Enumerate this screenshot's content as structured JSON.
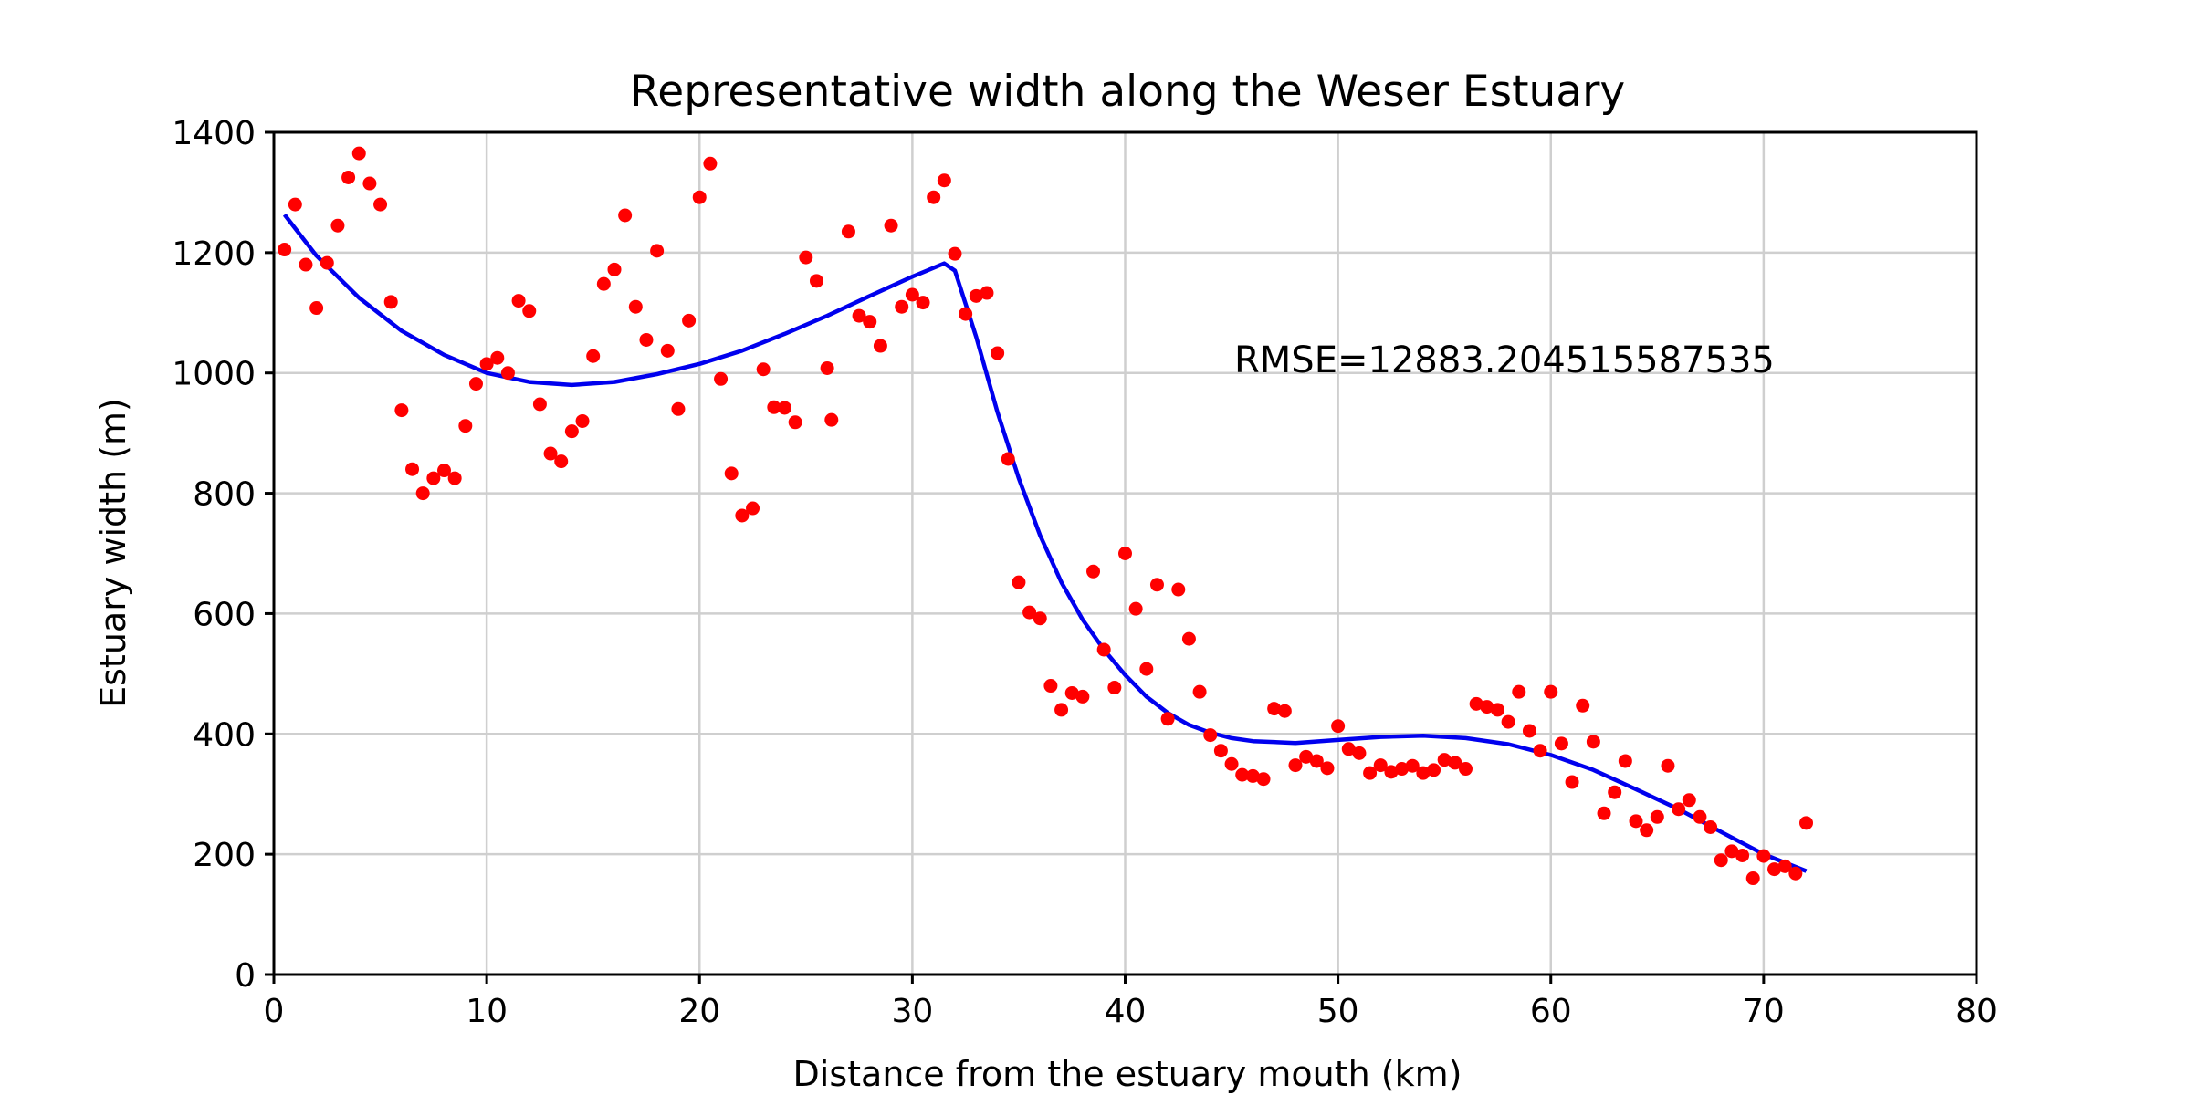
{
  "chart_data": {
    "type": "scatter",
    "title": "Representative width along the Weser Estuary",
    "xlabel": "Distance from the estuary mouth (km)",
    "ylabel": "Estuary width (m)",
    "xlim": [
      0,
      80
    ],
    "ylim": [
      0,
      1400
    ],
    "xticks": [
      0,
      10,
      20,
      30,
      40,
      50,
      60,
      70,
      80
    ],
    "yticks": [
      0,
      200,
      400,
      600,
      800,
      1000,
      1200,
      1400
    ],
    "grid": true,
    "annotation": "RMSE=12883.204515587535",
    "colors": {
      "points": "#ff0000",
      "fit": "#0000ee",
      "grid": "#cfcfcf"
    },
    "series": [
      {
        "kind": "scatter",
        "x": [
          0.5,
          1,
          1.5,
          2,
          2.5,
          3,
          3.5,
          4,
          4.5,
          5,
          5.5,
          6,
          6.5,
          7,
          7.5,
          8,
          8.5,
          9,
          9.5,
          10,
          10.5,
          11,
          11.5,
          12,
          12.5,
          13,
          13.5,
          14,
          14.5,
          15,
          15.5,
          16,
          16.5,
          17,
          17.5,
          18,
          18.5,
          19,
          19.5,
          20,
          20.5,
          21,
          21.5,
          22,
          22.5,
          23,
          23.5,
          24,
          24.5,
          25,
          25.5,
          26,
          26.2,
          27,
          27.5,
          28,
          28.5,
          29,
          29.5,
          30,
          30.5,
          31,
          31.5,
          32,
          32.5,
          33,
          33.5,
          34,
          34.5,
          35,
          35.5,
          36,
          36.5,
          37,
          37.5,
          38,
          38.5,
          39,
          39.5,
          40,
          40.5,
          41,
          41.5,
          42,
          42.5,
          43,
          43.5,
          44,
          44.5,
          45,
          45.5,
          46,
          46.5,
          47,
          47.5,
          48,
          48.5,
          49,
          49.5,
          50,
          50.5,
          51,
          51.5,
          52,
          52.5,
          53,
          53.5,
          54,
          54.5,
          55,
          55.5,
          56,
          56.5,
          57,
          57.5,
          58,
          58.5,
          59,
          59.5,
          60,
          60.5,
          61,
          61.5,
          62,
          62.5,
          63,
          63.5,
          64,
          64.5,
          65,
          65.5,
          66,
          66.5,
          67,
          67.5,
          68,
          68.5,
          69,
          69.5,
          70,
          70.5,
          71,
          71.5,
          72
        ],
        "y": [
          1205,
          1280,
          1180,
          1108,
          1183,
          1245,
          1325,
          1365,
          1315,
          1280,
          1118,
          938,
          840,
          800,
          825,
          838,
          825,
          912,
          982,
          1015,
          1025,
          1000,
          1120,
          1103,
          948,
          866,
          853,
          903,
          920,
          1028,
          1148,
          1172,
          1262,
          1110,
          1055,
          1203,
          1037,
          940,
          1087,
          1292,
          1348,
          990,
          833,
          763,
          775,
          1006,
          943,
          942,
          918,
          1192,
          1153,
          1008,
          922,
          1235,
          1095,
          1085,
          1045,
          1245,
          1110,
          1130,
          1117,
          1292,
          1320,
          1198,
          1098,
          1128,
          1133,
          1033,
          857,
          652,
          602,
          592,
          480,
          440,
          468,
          462,
          670,
          540,
          477,
          700,
          608,
          508,
          648,
          425,
          640,
          558,
          470,
          398,
          372,
          350,
          332,
          330,
          325,
          442,
          438,
          348,
          362,
          355,
          343,
          413,
          375,
          368,
          335,
          348,
          337,
          342,
          347,
          335,
          340,
          357,
          352,
          342,
          450,
          445,
          440,
          420,
          470,
          405,
          372,
          470,
          384,
          320,
          447,
          387,
          268,
          303,
          355,
          255,
          240,
          262,
          347,
          275,
          290,
          262,
          245,
          190,
          205,
          198,
          160,
          197,
          175,
          180,
          168,
          252
        ]
      },
      {
        "kind": "line",
        "x": [
          0.5,
          2,
          4,
          6,
          8,
          10,
          12,
          14,
          16,
          18,
          20,
          22,
          24,
          26,
          28,
          30,
          31.5,
          32,
          33,
          34,
          35,
          36,
          37,
          38,
          39,
          40,
          41,
          42,
          43,
          44,
          45,
          46,
          48,
          50,
          52,
          54,
          56,
          58,
          60,
          62,
          64,
          66,
          68,
          70,
          72
        ],
        "y": [
          1263,
          1195,
          1125,
          1070,
          1030,
          1000,
          985,
          980,
          985,
          998,
          1015,
          1037,
          1065,
          1095,
          1128,
          1160,
          1182,
          1170,
          1060,
          935,
          825,
          730,
          652,
          590,
          540,
          498,
          462,
          435,
          415,
          402,
          393,
          388,
          385,
          390,
          395,
          397,
          393,
          383,
          365,
          340,
          308,
          275,
          237,
          200,
          172
        ]
      }
    ]
  }
}
